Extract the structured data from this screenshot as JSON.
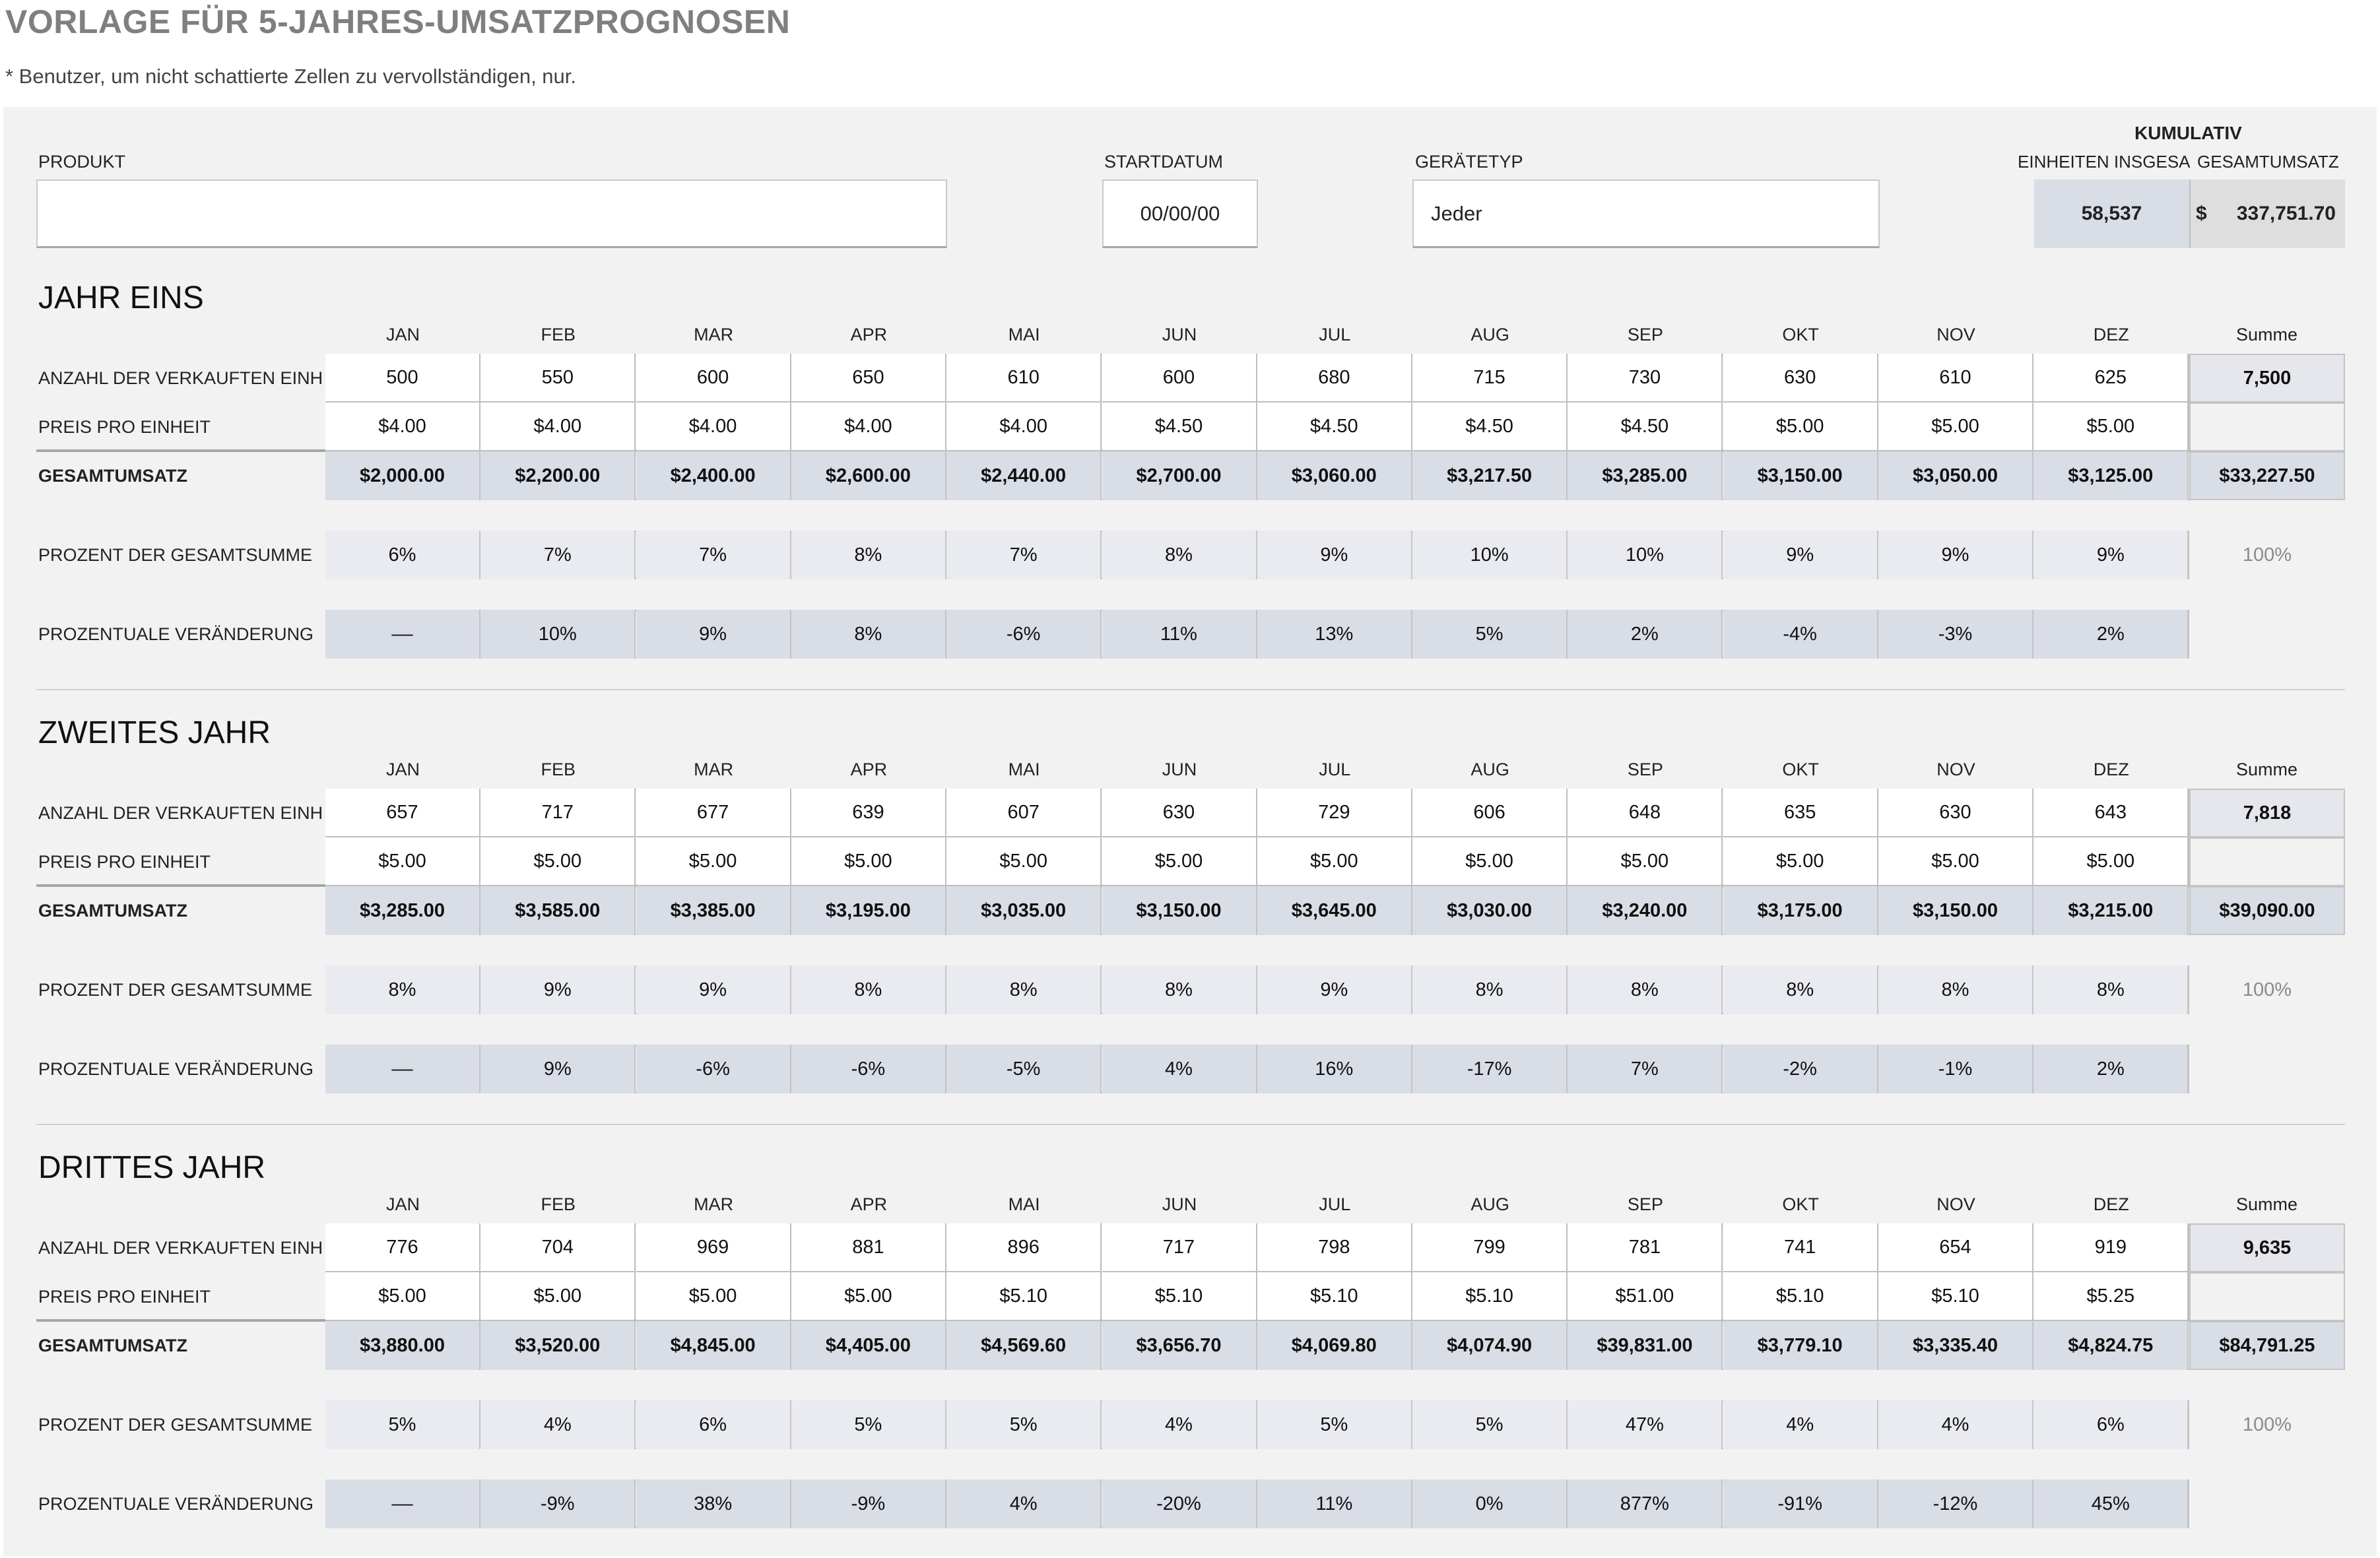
{
  "title": "VORLAGE FÜR 5-JAHRES-UMSATZPROGNOSEN",
  "subtitle": "* Benutzer, um nicht schattierte Zellen zu vervollständigen, nur.",
  "header": {
    "product_label": "PRODUKT",
    "product_value": "",
    "startdate_label": "STARTDATUM",
    "startdate_value": "00/00/00",
    "devicetype_label": "GERÄTETYP",
    "devicetype_value": "Jeder",
    "cumulative_label": "KUMULATIV",
    "units_total_label": "EINHEITEN INSGESAMT",
    "revenue_total_label": "GESAMTUMSATZ",
    "units_total_value": "58,537",
    "revenue_currency": "$",
    "revenue_total_value": "337,751.70"
  },
  "months": [
    "JAN",
    "FEB",
    "MAR",
    "APR",
    "MAI",
    "JUN",
    "JUL",
    "AUG",
    "SEP",
    "OKT",
    "NOV",
    "DEZ"
  ],
  "sum_label": "Summe",
  "row_labels": {
    "units": "ANZAHL DER VERKAUFTEN EINHEITEN",
    "price": "PREIS PRO EINHEIT",
    "revenue": "GESAMTUMSATZ",
    "percent": "PROZENT DER GESAMTSUMME",
    "change": "PROZENTUALE VERÄNDERUNG"
  },
  "years": [
    {
      "title": "JAHR EINS",
      "units": [
        "500",
        "550",
        "600",
        "650",
        "610",
        "600",
        "680",
        "715",
        "730",
        "630",
        "610",
        "625"
      ],
      "price": [
        "$4.00",
        "$4.00",
        "$4.00",
        "$4.00",
        "$4.00",
        "$4.50",
        "$4.50",
        "$4.50",
        "$4.50",
        "$5.00",
        "$5.00",
        "$5.00"
      ],
      "revenue": [
        "$2,000.00",
        "$2,200.00",
        "$2,400.00",
        "$2,600.00",
        "$2,440.00",
        "$2,700.00",
        "$3,060.00",
        "$3,217.50",
        "$3,285.00",
        "$3,150.00",
        "$3,050.00",
        "$3,125.00"
      ],
      "percent": [
        "6%",
        "7%",
        "7%",
        "8%",
        "7%",
        "8%",
        "9%",
        "10%",
        "10%",
        "9%",
        "9%",
        "9%"
      ],
      "change": [
        "––",
        "10%",
        "9%",
        "8%",
        "-6%",
        "11%",
        "13%",
        "5%",
        "2%",
        "-4%",
        "-3%",
        "2%"
      ],
      "sum_units": "7,500",
      "sum_revenue": "$33,227.50",
      "sum_percent": "100%"
    },
    {
      "title": "ZWEITES JAHR",
      "units": [
        "657",
        "717",
        "677",
        "639",
        "607",
        "630",
        "729",
        "606",
        "648",
        "635",
        "630",
        "643"
      ],
      "price": [
        "$5.00",
        "$5.00",
        "$5.00",
        "$5.00",
        "$5.00",
        "$5.00",
        "$5.00",
        "$5.00",
        "$5.00",
        "$5.00",
        "$5.00",
        "$5.00"
      ],
      "revenue": [
        "$3,285.00",
        "$3,585.00",
        "$3,385.00",
        "$3,195.00",
        "$3,035.00",
        "$3,150.00",
        "$3,645.00",
        "$3,030.00",
        "$3,240.00",
        "$3,175.00",
        "$3,150.00",
        "$3,215.00"
      ],
      "percent": [
        "8%",
        "9%",
        "9%",
        "8%",
        "8%",
        "8%",
        "9%",
        "8%",
        "8%",
        "8%",
        "8%",
        "8%"
      ],
      "change": [
        "––",
        "9%",
        "-6%",
        "-6%",
        "-5%",
        "4%",
        "16%",
        "-17%",
        "7%",
        "-2%",
        "-1%",
        "2%"
      ],
      "sum_units": "7,818",
      "sum_revenue": "$39,090.00",
      "sum_percent": "100%"
    },
    {
      "title": "DRITTES JAHR",
      "units": [
        "776",
        "704",
        "969",
        "881",
        "896",
        "717",
        "798",
        "799",
        "781",
        "741",
        "654",
        "919"
      ],
      "price": [
        "$5.00",
        "$5.00",
        "$5.00",
        "$5.00",
        "$5.10",
        "$5.10",
        "$5.10",
        "$5.10",
        "$51.00",
        "$5.10",
        "$5.10",
        "$5.25"
      ],
      "revenue": [
        "$3,880.00",
        "$3,520.00",
        "$4,845.00",
        "$4,405.00",
        "$4,569.60",
        "$3,656.70",
        "$4,069.80",
        "$4,074.90",
        "$39,831.00",
        "$3,779.10",
        "$3,335.40",
        "$4,824.75"
      ],
      "percent": [
        "5%",
        "4%",
        "6%",
        "5%",
        "5%",
        "4%",
        "5%",
        "5%",
        "47%",
        "4%",
        "4%",
        "6%"
      ],
      "change": [
        "––",
        "-9%",
        "38%",
        "-9%",
        "4%",
        "-20%",
        "11%",
        "0%",
        "877%",
        "-91%",
        "-12%",
        "45%"
      ],
      "sum_units": "9,635",
      "sum_revenue": "$84,791.25",
      "sum_percent": "100%"
    }
  ]
}
